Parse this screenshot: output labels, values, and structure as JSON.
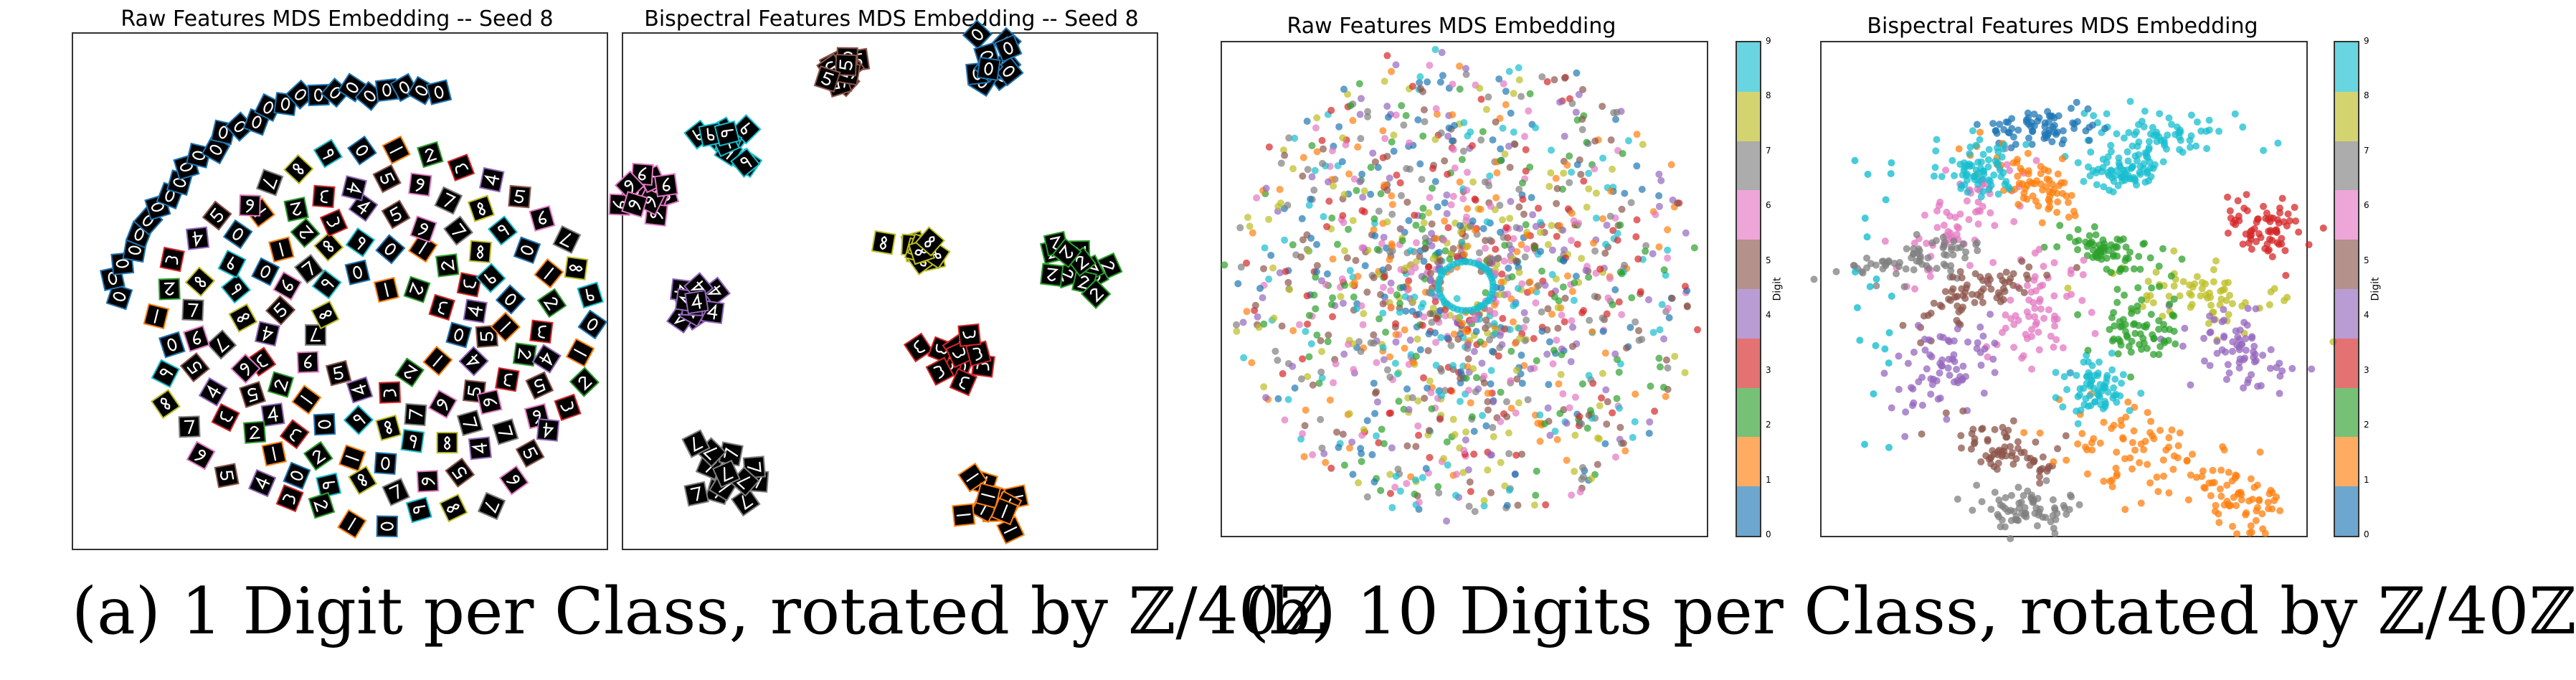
{
  "figure": {
    "panel_a": {
      "left_title": "Raw Features MDS Embedding -- Seed 8",
      "right_title": "Bispectral Features MDS Embedding -- Seed 8",
      "caption_label": "(a)",
      "caption_text": "1 Digit per Class, rotated by ℤ/40ℤ"
    },
    "panel_b": {
      "left_title": "Raw Features MDS Embedding",
      "right_title": "Bispectral Features MDS Embedding",
      "colorbar_label": "Digit",
      "caption_label": "(b)",
      "caption_text": "10 Digits per Class, rotated by ℤ/40ℤ"
    }
  },
  "chart_data": [
    {
      "type": "scatter",
      "title": "Raw Features MDS Embedding -- Seed 8",
      "marker": "digit-thumbnail",
      "pattern": "concentric rings",
      "n_classes": 10,
      "rotations": 40,
      "axes": "off"
    },
    {
      "type": "scatter",
      "title": "Bispectral Features MDS Embedding -- Seed 8",
      "marker": "digit-thumbnail",
      "pattern": "tight cluster per class",
      "n_classes": 10,
      "rotations": 40,
      "axes": "off"
    },
    {
      "type": "scatter",
      "title": "Raw Features MDS Embedding",
      "colorbar": {
        "label": "Digit",
        "ticks": [
          "0",
          "1",
          "2",
          "3",
          "4",
          "5",
          "6",
          "7",
          "8",
          "9"
        ]
      },
      "pattern": "mixed concentric disc",
      "axes": "off"
    },
    {
      "type": "scatter",
      "title": "Bispectral Features MDS Embedding",
      "colorbar": {
        "label": "Digit",
        "ticks": [
          "0",
          "1",
          "2",
          "3",
          "4",
          "5",
          "6",
          "7",
          "8",
          "9"
        ]
      },
      "pattern": "class-separated clusters",
      "axes": "off"
    }
  ],
  "palette": [
    "#1f77b4",
    "#ff7f0e",
    "#2ca02c",
    "#d62728",
    "#9467bd",
    "#8c564b",
    "#e377c2",
    "#7f7f7f",
    "#bcbd22",
    "#17becf"
  ]
}
